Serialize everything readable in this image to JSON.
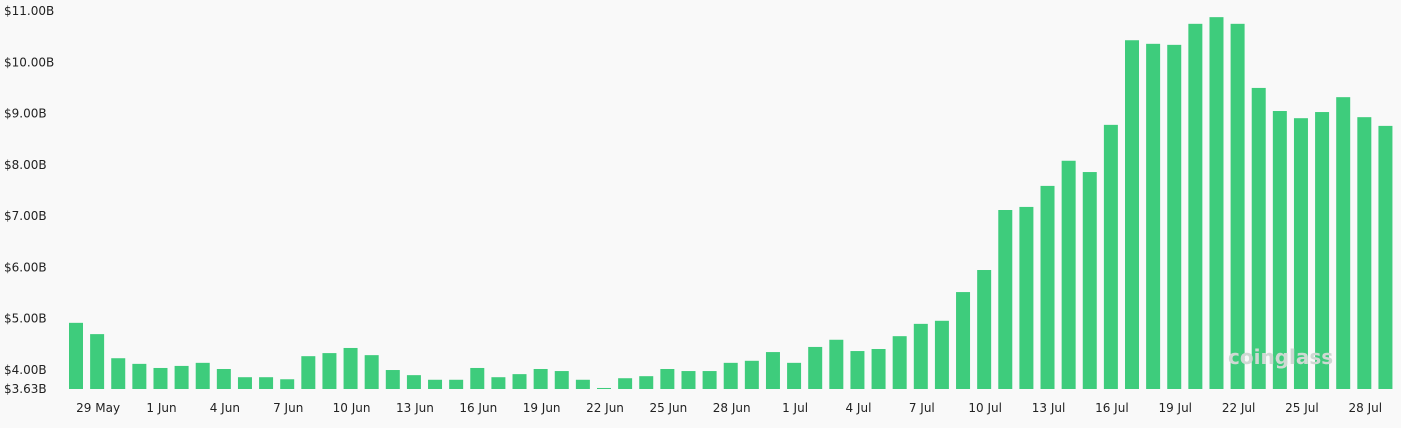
{
  "chart_data": {
    "type": "bar",
    "title": "",
    "xlabel": "",
    "ylabel": "",
    "ylim": [
      3.63,
      11.0
    ],
    "yticks": [
      {
        "value": 11.0,
        "label": "$11.00B"
      },
      {
        "value": 10.0,
        "label": "$10.00B"
      },
      {
        "value": 9.0,
        "label": "$9.00B"
      },
      {
        "value": 8.0,
        "label": "$8.00B"
      },
      {
        "value": 7.0,
        "label": "$7.00B"
      },
      {
        "value": 6.0,
        "label": "$6.00B"
      },
      {
        "value": 5.0,
        "label": "$5.00B"
      },
      {
        "value": 4.0,
        "label": "$4.00B"
      },
      {
        "value": 3.63,
        "label": "$3.63B"
      }
    ],
    "xtick_labels": [
      "29 May",
      "1 Jun",
      "4 Jun",
      "7 Jun",
      "10 Jun",
      "13 Jun",
      "16 Jun",
      "19 Jun",
      "22 Jun",
      "25 Jun",
      "28 Jun",
      "1 Jul",
      "4 Jul",
      "7 Jul",
      "10 Jul",
      "13 Jul",
      "16 Jul",
      "19 Jul",
      "22 Jul",
      "25 Jul",
      "28 Jul"
    ],
    "categories": [
      "28 May",
      "29 May",
      "30 May",
      "31 May",
      "1 Jun",
      "2 Jun",
      "3 Jun",
      "4 Jun",
      "5 Jun",
      "6 Jun",
      "7 Jun",
      "8 Jun",
      "9 Jun",
      "10 Jun",
      "11 Jun",
      "12 Jun",
      "13 Jun",
      "14 Jun",
      "15 Jun",
      "16 Jun",
      "17 Jun",
      "18 Jun",
      "19 Jun",
      "20 Jun",
      "21 Jun",
      "22 Jun",
      "23 Jun",
      "24 Jun",
      "25 Jun",
      "26 Jun",
      "27 Jun",
      "28 Jun",
      "29 Jun",
      "30 Jun",
      "1 Jul",
      "2 Jul",
      "3 Jul",
      "4 Jul",
      "5 Jul",
      "6 Jul",
      "7 Jul",
      "8 Jul",
      "9 Jul",
      "10 Jul",
      "11 Jul",
      "12 Jul",
      "13 Jul",
      "14 Jul",
      "15 Jul",
      "16 Jul",
      "17 Jul",
      "18 Jul",
      "19 Jul",
      "20 Jul",
      "21 Jul",
      "22 Jul",
      "23 Jul",
      "24 Jul",
      "25 Jul",
      "26 Jul",
      "27 Jul",
      "28 Jul",
      "29 Jul"
    ],
    "values": [
      4.92,
      4.7,
      4.23,
      4.12,
      4.04,
      4.08,
      4.14,
      4.02,
      3.86,
      3.86,
      3.82,
      4.27,
      4.33,
      4.43,
      4.29,
      4.0,
      3.9,
      3.81,
      3.81,
      4.04,
      3.86,
      3.92,
      4.02,
      3.98,
      3.81,
      3.65,
      3.84,
      3.88,
      4.02,
      3.98,
      3.98,
      4.14,
      4.18,
      4.35,
      4.14,
      4.45,
      4.59,
      4.37,
      4.41,
      4.66,
      4.9,
      4.96,
      5.52,
      5.95,
      7.12,
      7.18,
      7.59,
      8.08,
      7.86,
      8.78,
      10.43,
      10.36,
      10.34,
      10.75,
      10.88,
      10.75,
      9.5,
      9.05,
      8.91,
      9.03,
      9.32,
      8.93,
      8.76
    ],
    "bar_color": "#3ecc7c",
    "grid": false,
    "watermark": "coinglass"
  }
}
